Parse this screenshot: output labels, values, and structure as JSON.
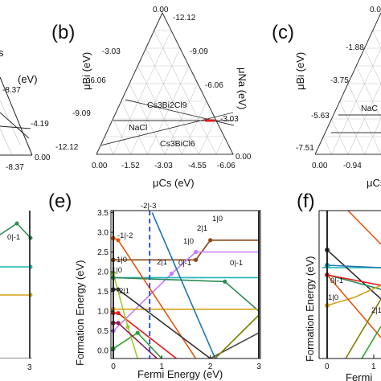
{
  "panels": {
    "a": {
      "labels": [
        "s",
        "(eV)",
        "-8.37",
        "-4.19",
        "0.00",
        "-8.37"
      ]
    },
    "b": {
      "label": "(b)",
      "apex": "0.00",
      "left_axis": "μBi (eV)",
      "right_axis": "μNa (eV)",
      "bottom_axis": "μCs (eV)",
      "left_ticks": [
        "-12.12",
        "-9.09",
        "-6.06",
        "-3.03"
      ],
      "right_ticks": [
        "-12.12",
        "-9.09",
        "-6.06",
        "-3.03",
        "0.00"
      ],
      "bottom_ticks": [
        "0.00",
        "-1.52",
        "-3.03",
        "-4.55",
        "-6.06"
      ],
      "phases": [
        "Cs3Bi2Cl9",
        "NaCl",
        "Cs3BiCl6"
      ]
    },
    "c": {
      "label": "(c)",
      "apex": "0.00",
      "left_axis": "μBi (eV)",
      "left_ticks": [
        "-1.88",
        "-3.75",
        "-5.63",
        "-7.51"
      ],
      "bottom_ticks": [
        "0.00",
        "-0.94"
      ],
      "bottom_axis_partial": "μCs",
      "phases": [
        "NaC"
      ]
    },
    "d": {
      "xtick": "3",
      "ann": [
        "0|-1"
      ]
    },
    "e": {
      "label": "(e)",
      "xlabel": "Fermi Energy (eV)",
      "ylabel": "Formation Energy (eV)",
      "xticks": [
        "0",
        "1",
        "2",
        "3"
      ],
      "yticks": [
        "0.0",
        "0.5",
        "1.0",
        "1.5",
        "2.0",
        "2.5",
        "3.0",
        "3.5"
      ],
      "annotations": [
        "-2|-3",
        "-1|-2",
        "1|0",
        "2|1",
        "1|0",
        "1|0",
        "2|1",
        "0|-1",
        "1|0",
        "0|-1",
        "1|0"
      ]
    },
    "f": {
      "label": "(f)",
      "ylabel": "Formation Energy (eV)",
      "xlabel_partial": "Fermi",
      "xticks": [
        "0",
        "1"
      ],
      "annotations": [
        "0|-1",
        "1|0",
        "2|1"
      ]
    }
  },
  "chart_data": [
    {
      "type": "line",
      "title": "(e)",
      "xlabel": "Fermi Energy (eV)",
      "ylabel": "Formation Energy (eV)",
      "xlim": [
        -0.1,
        3.0
      ],
      "ylim": [
        -0.2,
        3.55
      ],
      "vline_dashed_x": 0.75,
      "series": [
        {
          "color": "#8b4513",
          "x": [
            0,
            1.7,
            2.0,
            3.0
          ],
          "y": [
            2.3,
            2.3,
            2.8,
            2.8
          ]
        },
        {
          "color": "#c77dff",
          "x": [
            0,
            1.2,
            1.7,
            3.0
          ],
          "y": [
            0.5,
            1.95,
            2.5,
            2.5
          ]
        },
        {
          "color": "#19b5b5",
          "x": [
            -0.1,
            3.0
          ],
          "y": [
            1.85,
            1.85
          ]
        },
        {
          "color": "#2e8b57",
          "x": [
            0,
            2.3,
            3.0
          ],
          "y": [
            1.85,
            1.75,
            1.0
          ]
        },
        {
          "color": "#d4a017",
          "x": [
            0,
            3.0
          ],
          "y": [
            1.05,
            1.05
          ]
        },
        {
          "color": "#e6550d",
          "x": [
            0,
            0.1,
            1.7
          ],
          "y": [
            2.85,
            2.8,
            -0.2
          ]
        },
        {
          "color": "#1f77b4",
          "x": [
            0.8,
            2.1
          ],
          "y": [
            3.5,
            -0.2
          ]
        },
        {
          "color": "#e41a1c",
          "x": [
            0,
            0.1,
            1.3
          ],
          "y": [
            0.95,
            0.95,
            -0.2
          ]
        },
        {
          "color": "#333333",
          "x": [
            0,
            0.1,
            2.0
          ],
          "y": [
            1.55,
            1.55,
            -0.2
          ]
        },
        {
          "color": "#2ca02c",
          "x": [
            0,
            0.5,
            1.0
          ],
          "y": [
            0.05,
            0.45,
            -0.2
          ]
        },
        {
          "color": "#9acd32",
          "x": [
            0,
            0.3,
            0.5
          ],
          "y": [
            1.95,
            0.6,
            -0.2
          ]
        },
        {
          "color": "#8b2252",
          "x": [
            0,
            0.1,
            0.9
          ],
          "y": [
            0.7,
            0.7,
            -0.2
          ]
        },
        {
          "color": "#4a4a4a",
          "x": [
            2.0,
            3.0
          ],
          "y": [
            -0.2,
            0.45
          ]
        },
        {
          "color": "#808000",
          "x": [
            2.1,
            3.0
          ],
          "y": [
            -0.2,
            0.9
          ]
        }
      ]
    }
  ]
}
